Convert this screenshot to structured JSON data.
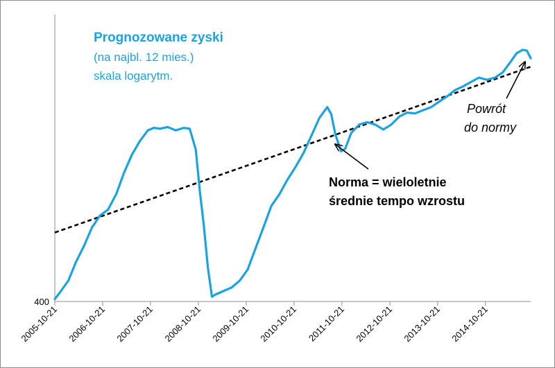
{
  "chart_data": {
    "type": "line",
    "title": "Prognozowane zyski",
    "subtitle_lines": [
      "(na najbl. 12 mies.)",
      "skala logarytm."
    ],
    "y_scale": "log",
    "ytick_labels": [
      "400"
    ],
    "x_tick_labels": [
      "2005-10-21",
      "2006-10-21",
      "2007-10-21",
      "2008-10-21",
      "2009-10-21",
      "2010-10-21",
      "2011-10-21",
      "2012-10-21",
      "2013-10-21",
      "2014-10-21"
    ],
    "grid": false,
    "legend": "none",
    "series": [
      {
        "color": "#1aa3e0",
        "x": [
          "2005-10-21",
          "2005-12-01",
          "2006-02-01",
          "2006-04-01",
          "2006-06-01",
          "2006-08-01",
          "2006-10-01",
          "2006-12-01",
          "2007-02-01",
          "2007-04-01",
          "2007-06-01",
          "2007-08-01",
          "2007-10-01",
          "2007-11-15",
          "2008-01-01",
          "2008-03-01",
          "2008-05-01",
          "2008-07-01",
          "2008-08-15",
          "2008-10-01",
          "2008-11-01",
          "2008-12-01",
          "2009-01-01",
          "2009-02-01",
          "2009-03-01",
          "2009-05-01",
          "2009-07-01",
          "2009-09-01",
          "2009-11-01",
          "2010-01-01",
          "2010-03-01",
          "2010-05-01",
          "2010-07-01",
          "2010-09-01",
          "2010-11-01",
          "2011-01-01",
          "2011-03-01",
          "2011-05-01",
          "2011-07-01",
          "2011-08-01",
          "2011-09-01",
          "2011-10-15",
          "2011-11-15",
          "2012-01-01",
          "2012-03-01",
          "2012-05-01",
          "2012-07-01",
          "2012-09-01",
          "2012-11-01",
          "2013-01-01",
          "2013-03-01",
          "2013-05-01",
          "2013-07-01",
          "2013-09-01",
          "2013-11-01",
          "2014-01-01",
          "2014-03-01",
          "2014-05-01",
          "2014-07-01",
          "2014-09-01",
          "2014-11-01",
          "2015-01-01",
          "2015-03-01",
          "2015-05-01",
          "2015-06-15",
          "2015-08-01",
          "2015-09-01",
          "2015-10-01"
        ],
        "y": [
          402,
          408,
          418,
          435,
          450,
          468,
          480,
          486,
          502,
          525,
          546,
          562,
          575,
          578,
          577,
          579,
          575,
          578,
          577,
          552,
          505,
          470,
          430,
          404,
          406,
          409,
          412,
          418,
          428,
          448,
          468,
          490,
          502,
          518,
          532,
          548,
          568,
          590,
          604,
          595,
          570,
          550,
          553,
          572,
          582,
          585,
          582,
          576,
          582,
          592,
          597,
          596,
          600,
          604,
          611,
          618,
          626,
          631,
          637,
          643,
          640,
          643,
          650,
          665,
          677,
          682,
          681,
          670
        ]
      },
      {
        "name": "Norma = wieloletnie średnie tempo wzrostu",
        "style": "dashed",
        "color": "#000000",
        "x": [
          "2005-10-21",
          "2015-10-01"
        ],
        "y": [
          463,
          658
        ]
      }
    ],
    "annotations": [
      {
        "lines": [
          "Norma = wieloletnie",
          "średnie tempo wzrostu"
        ],
        "style": "bold"
      },
      {
        "lines": [
          "Powrót",
          "do normy"
        ],
        "style": "italic"
      }
    ]
  },
  "colors": {
    "series": "#1aa3e0",
    "title": "#1aa3e0",
    "trend": "#000000",
    "axis": "#8c8c8c"
  }
}
